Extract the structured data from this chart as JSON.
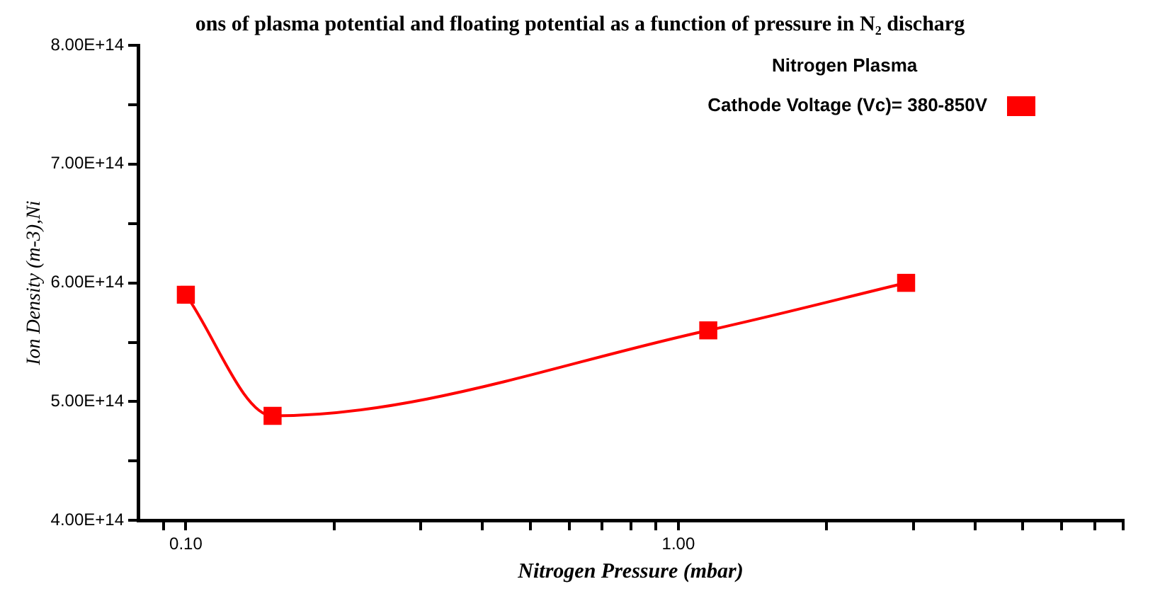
{
  "chart_data": {
    "type": "line",
    "title": "ons of plasma potential and floating potential as a function of pressure in N₂ discharg",
    "xlabel": "Nitrogen Pressure (mbar)",
    "ylabel": "Ion Density (m-3),Ni",
    "legend_title": "Nitrogen Plasma",
    "x": [
      0.1,
      0.15,
      1.15,
      2.9
    ],
    "series": [
      {
        "name": "Cathode Voltage (Vc)= 380-850V",
        "color": "#ff0000",
        "values": [
          590000000000000.0,
          488000000000000.0,
          560000000000000.0,
          600000000000000.0
        ]
      }
    ],
    "log": "x",
    "xlim": [
      0.08,
      8
    ],
    "xticks": [
      {
        "value": 0.09,
        "label": null
      },
      {
        "value": 0.1,
        "label": "0.10"
      },
      {
        "value": 0.2,
        "label": null
      },
      {
        "value": 0.3,
        "label": null
      },
      {
        "value": 0.4,
        "label": null
      },
      {
        "value": 0.5,
        "label": null
      },
      {
        "value": 0.6,
        "label": null
      },
      {
        "value": 0.7,
        "label": null
      },
      {
        "value": 0.8,
        "label": null
      },
      {
        "value": 0.9,
        "label": null
      },
      {
        "value": 1,
        "label": "1.00"
      },
      {
        "value": 2,
        "label": null
      },
      {
        "value": 3,
        "label": null
      },
      {
        "value": 4,
        "label": null
      },
      {
        "value": 5,
        "label": null
      },
      {
        "value": 6,
        "label": null
      },
      {
        "value": 7,
        "label": null
      },
      {
        "value": 8,
        "label": null
      }
    ],
    "ylim": [
      400000000000000.0,
      800000000000000.0
    ],
    "yticks": [
      {
        "value": 400000000000000.0,
        "label": "4.00E+14"
      },
      {
        "value": 450000000000000.0,
        "label": null
      },
      {
        "value": 500000000000000.0,
        "label": "5.00E+14"
      },
      {
        "value": 550000000000000.0,
        "label": null
      },
      {
        "value": 600000000000000.0,
        "label": "6.00E+14"
      },
      {
        "value": 650000000000000.0,
        "label": null
      },
      {
        "value": 700000000000000.0,
        "label": "7.00E+14"
      },
      {
        "value": 750000000000000.0,
        "label": null
      },
      {
        "value": 800000000000000.0,
        "label": "8.00E+14"
      }
    ],
    "grid": false,
    "legend": "top right",
    "marker": "square",
    "line_style": "solid"
  }
}
